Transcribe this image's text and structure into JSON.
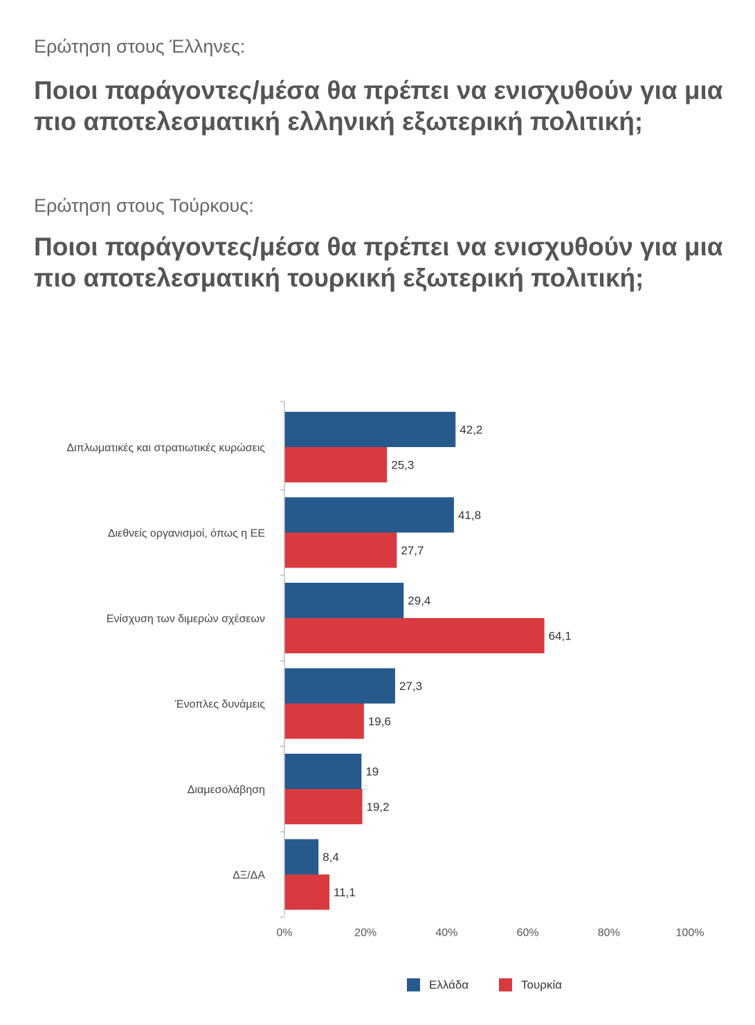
{
  "header": {
    "intro_greek": "Ερώτηση στους Έλληνες:",
    "title_greek": "Ποιοι παράγοντες/μέσα θα πρέπει να  ενισχυθούν για μια πιο αποτελεσματική ελληνική εξωτερική πολιτική;",
    "intro_turkish": "Ερώτηση στους Τούρκους:",
    "title_turkish": "Ποιοι παράγοντες/μέσα θα πρέπει να  ενισχυθούν για μια πιο αποτελεσματική τουρκική εξωτερική πολιτική;"
  },
  "chart_data": {
    "type": "bar",
    "orientation": "horizontal",
    "categories": [
      "Διπλωματικές και στρατιωτικές κυρώσεις",
      "Διεθνείς οργανισμοί, όπως η ΕΕ",
      "Ενίσχυση των διμερών σχέσεων",
      "Ένοπλες δυνάμεις",
      "Διαμεσολάβηση",
      "ΔΞ/ΔΑ"
    ],
    "series": [
      {
        "name": "Ελλάδα",
        "color": "#275A8C",
        "values": [
          42.2,
          41.8,
          29.4,
          27.3,
          19,
          8.4
        ],
        "value_labels": [
          "42,2",
          "41,8",
          "29,4",
          "27,3",
          "19",
          "8,4"
        ]
      },
      {
        "name": "Τουρκία",
        "color": "#D83A40",
        "values": [
          25.3,
          27.7,
          64.1,
          19.6,
          19.2,
          11.1
        ],
        "value_labels": [
          "25,3",
          "27,7",
          "64,1",
          "19,6",
          "19,2",
          "11,1"
        ]
      }
    ],
    "xlim": [
      0,
      100
    ],
    "x_ticks": [
      "0%",
      "20%",
      "40%",
      "60%",
      "80%",
      "100%"
    ],
    "grid": false,
    "legend_position": "bottom"
  }
}
